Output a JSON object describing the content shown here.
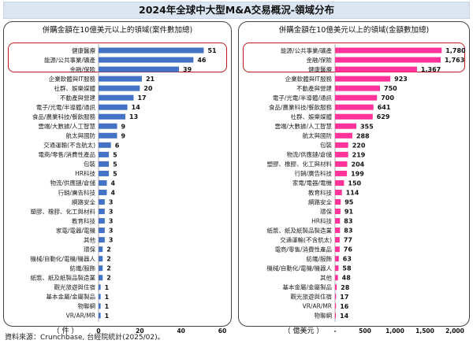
{
  "title": "2024年全球中大型M&A交易概況-領域分布",
  "source": "資料來源：Crunchbase, 台經院統計(2025/02)。",
  "colors": {
    "left_bar": "#4472c4",
    "right_bar": "#ff3399",
    "highlight": "#c0181f"
  },
  "chart_data": [
    {
      "type": "bar",
      "orientation": "horizontal",
      "title": "併購金額在10億美元以上的領域(案件數加總)",
      "unit_label": "（ 件 ）",
      "xlim": [
        0,
        60
      ],
      "ticks": [
        0,
        20,
        40,
        60
      ],
      "highlighted_count": 3,
      "categories": [
        "健康醫療",
        "能源/公共事業/礦產",
        "金融/保險",
        "企業軟體與IT服務",
        "社群、娛樂媒體",
        "不動產與營建",
        "電子/光電/半導體/通訊",
        "食品/農業科技/餐飲服務",
        "雲端/大數據/人工智慧",
        "航太與國防",
        "交通運輸(不含航太)",
        "電商/零售/消費性產品",
        "包裝",
        "HR科技",
        "物流/供應鏈/倉儲",
        "行銷/廣告科技",
        "網路安全",
        "塑膠、橡膠、化工與材料",
        "教育科技",
        "家電/電器/電機",
        "其他",
        "環保",
        "機械/自動化/電機/機器人",
        "紡織/服飾",
        "紙漿、紙及紙製品製造業",
        "觀光旅遊與住宿",
        "基本金屬/金屬製品",
        "物聯網",
        "VR/AR/MR"
      ],
      "values": [
        51,
        46,
        39,
        21,
        20,
        17,
        14,
        13,
        9,
        9,
        6,
        5,
        5,
        5,
        4,
        4,
        3,
        3,
        3,
        3,
        3,
        2,
        2,
        2,
        2,
        1,
        1,
        1,
        1
      ]
    },
    {
      "type": "bar",
      "orientation": "horizontal",
      "title": "併購金額在10億美元以上的領域(金額數加總)",
      "unit_label": "（ 億美元 ）",
      "xlim": [
        0,
        2000
      ],
      "ticks": [
        0,
        500,
        1000,
        1500,
        2000
      ],
      "tick_labels": [
        "-",
        "500",
        "1,000",
        "1,500",
        "2,000"
      ],
      "highlighted_count": 3,
      "categories": [
        "能源/公共事業/礦產",
        "金融/保險",
        "健康醫療",
        "企業軟體與IT服務",
        "不動產與營建",
        "電子/光電/半導體/通訊",
        "食品/農業科技/餐飲服務",
        "社群、娛樂媒體",
        "雲端/大數據/人工智慧",
        "航太與國防",
        "包裝",
        "物流/供應鏈/倉儲",
        "塑膠、橡膠、化工與材料",
        "行銷/廣告科技",
        "家電/電器/電機",
        "教育科技",
        "網路安全",
        "環保",
        "HR科技",
        "紙漿、紙及紙製品製造業",
        "交通運輸(不含航太)",
        "電商/零售/消費性產品",
        "紡織/服飾",
        "機械/自動化/電機/機器人",
        "其他",
        "基本金屬/金屬製品",
        "觀光旅遊與住宿",
        "VR/AR/MR",
        "物聯網"
      ],
      "values": [
        1780,
        1763,
        1367,
        923,
        750,
        700,
        641,
        629,
        355,
        288,
        220,
        219,
        204,
        199,
        150,
        114,
        95,
        91,
        83,
        83,
        77,
        76,
        63,
        58,
        48,
        28,
        17,
        16,
        14
      ],
      "value_labels": [
        "1,780",
        "1,763",
        "1,367",
        "923",
        "750",
        "700",
        "641",
        "629",
        "355",
        "288",
        "220",
        "219",
        "204",
        "199",
        "150",
        "114",
        "95",
        "91",
        "83",
        "83",
        "77",
        "76",
        "63",
        "58",
        "48",
        "28",
        "17",
        "16",
        "14"
      ]
    }
  ]
}
